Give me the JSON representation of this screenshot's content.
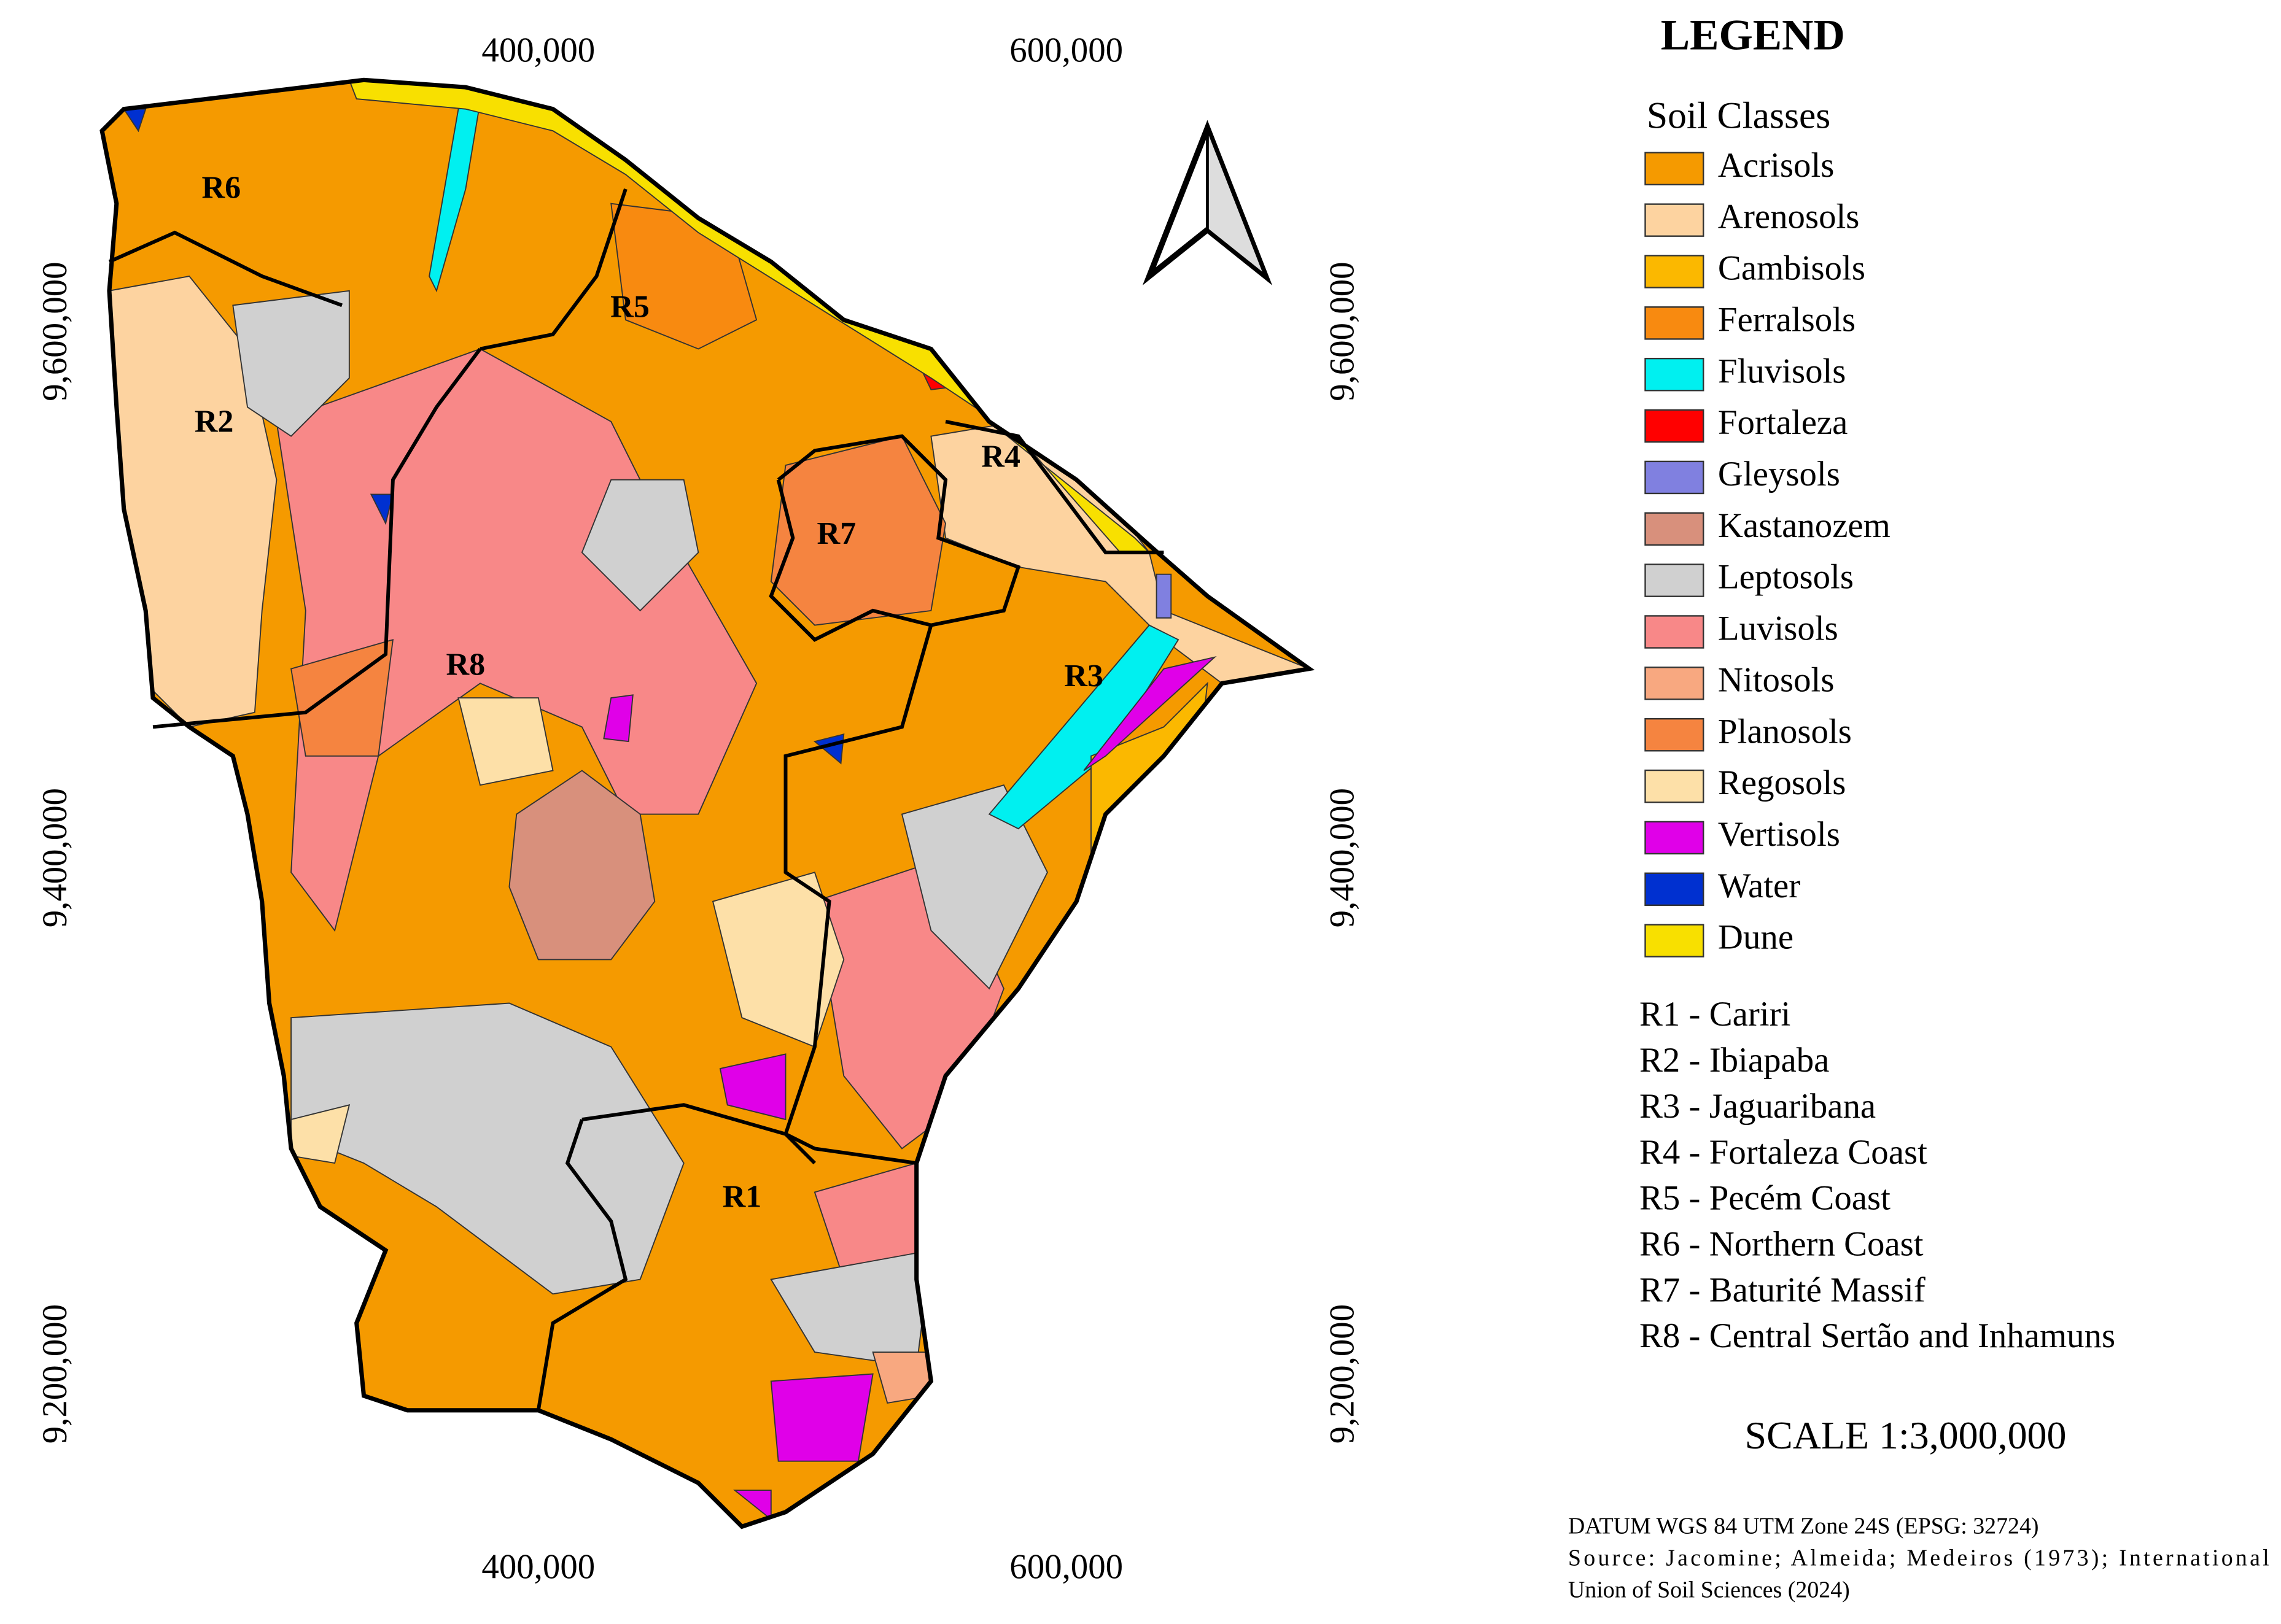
{
  "legend": {
    "title": "LEGEND",
    "subtitle": "Soil Classes",
    "classes": [
      {
        "name": "Acrisols",
        "color": "#f59a00"
      },
      {
        "name": "Arenosols",
        "color": "#fdd3a0"
      },
      {
        "name": "Cambisols",
        "color": "#fbb800"
      },
      {
        "name": "Ferralsols",
        "color": "#f88a10"
      },
      {
        "name": "Fluvisols",
        "color": "#00f0f0"
      },
      {
        "name": "Fortaleza",
        "color": "#ff0000"
      },
      {
        "name": "Gleysols",
        "color": "#8080e0"
      },
      {
        "name": "Kastanozem",
        "color": "#d8907c"
      },
      {
        "name": "Leptosols",
        "color": "#d0d0d0"
      },
      {
        "name": "Luvisols",
        "color": "#f88888"
      },
      {
        "name": "Nitosols",
        "color": "#f8a880"
      },
      {
        "name": "Planosols",
        "color": "#f58440"
      },
      {
        "name": "Regosols",
        "color": "#fde0a8"
      },
      {
        "name": "Vertisols",
        "color": "#e000e8"
      },
      {
        "name": "Water",
        "color": "#0030d0"
      },
      {
        "name": "Dune",
        "color": "#f8e000"
      }
    ],
    "regions": [
      "R1 - Cariri",
      "R2 - Ibiapaba",
      "R3 - Jaguaribana",
      "R4 - Fortaleza Coast",
      "R5 - Pecém Coast",
      "R6 - Northern Coast",
      "R7 - Baturité Massif",
      "R8 - Central Sertão and Inhamuns"
    ]
  },
  "map": {
    "region_labels": [
      "R1",
      "R2",
      "R3",
      "R4",
      "R5",
      "R6",
      "R7",
      "R8"
    ],
    "x_labels": [
      "400,000",
      "600,000"
    ],
    "y_labels": [
      "9,600,000",
      "9,400,000",
      "9,200,000"
    ]
  },
  "scale": "SCALE 1:3,000,000",
  "notes": [
    "DATUM WGS 84 UTM Zone 24S (EPSG: 32724)",
    "Source: Jacomine; Almeida; Medeiros (1973); International",
    "Union of Soil Sciences (2024)"
  ]
}
